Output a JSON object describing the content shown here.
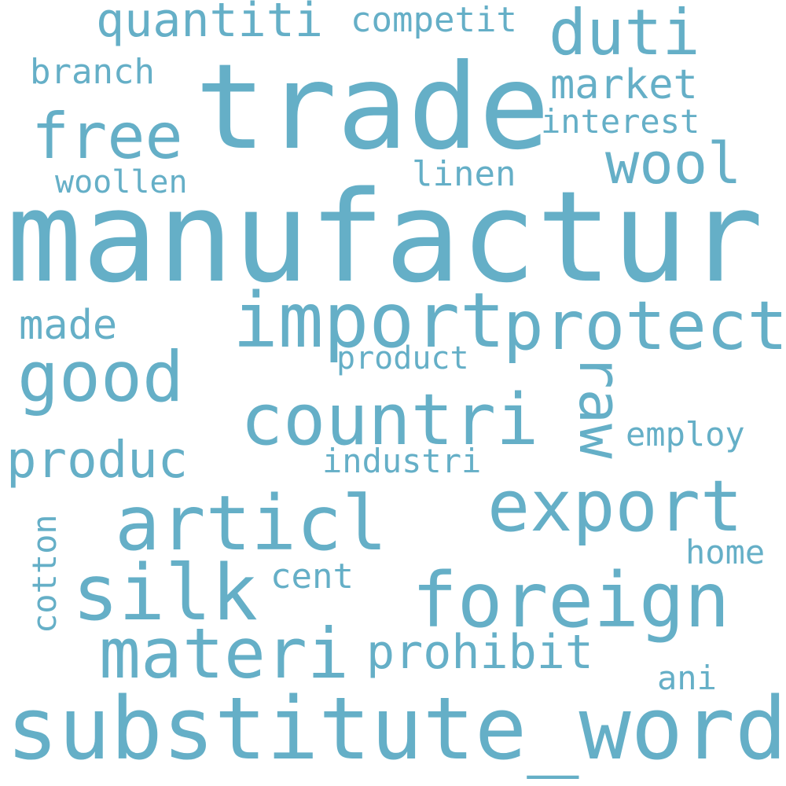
{
  "cloud": {
    "word_color": "#65afc7",
    "background": "#ffffff",
    "words": {
      "manufactur": "manufactur",
      "trade": "trade",
      "substitute_word": "substitute_word",
      "import": "import",
      "protect": "protect",
      "countri": "countri",
      "articl": "articl",
      "export": "export",
      "foreign": "foreign",
      "silk": "silk",
      "materi": "materi",
      "good": "good",
      "free": "free",
      "duti": "duti",
      "wool": "wool",
      "produc": "produc",
      "prohibit": "prohibit",
      "raw": "raw",
      "quantiti": "quantiti",
      "market": "market",
      "made": "made",
      "competit": "competit",
      "branch": "branch",
      "interest": "interest",
      "linen": "linen",
      "woollen": "woollen",
      "product": "product",
      "employ": "employ",
      "industri": "industri",
      "cotton": "cotton",
      "home": "home",
      "cent": "cent",
      "ani": "ani"
    }
  }
}
